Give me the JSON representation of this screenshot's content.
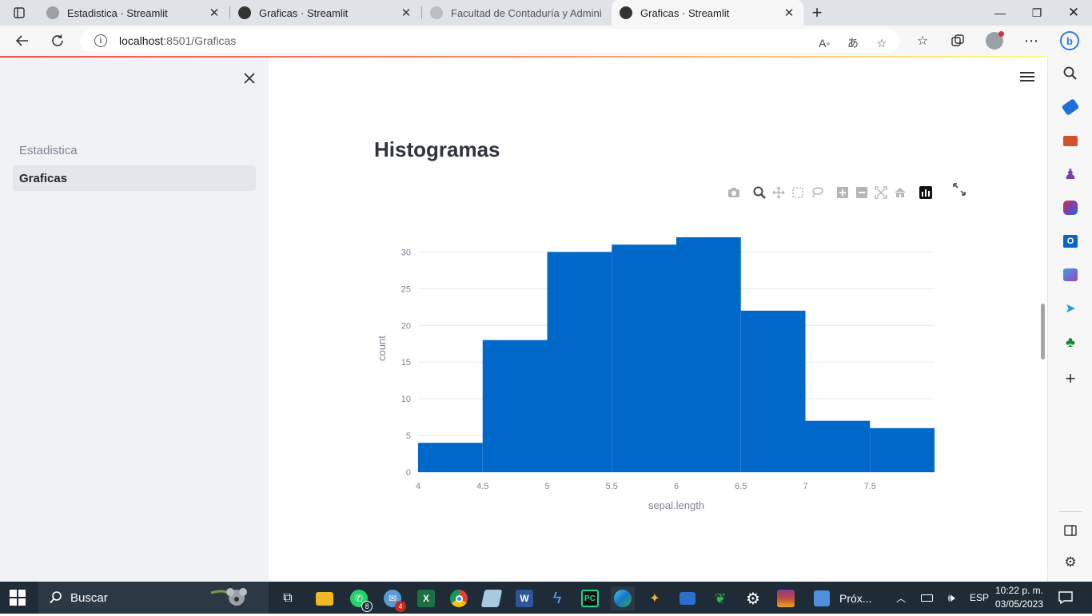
{
  "browser": {
    "tabs": [
      {
        "title": "Estadistica · Streamlit",
        "active": false
      },
      {
        "title": "Graficas · Streamlit",
        "active": false
      },
      {
        "title": "Facultad de Contaduría y Admini",
        "active": false
      },
      {
        "title": "Graficas · Streamlit",
        "active": true
      }
    ],
    "url_host": "localhost",
    "url_path": ":8501/Graficas"
  },
  "sidebar": {
    "items": [
      {
        "label": "Estadistica",
        "active": false
      },
      {
        "label": "Graficas",
        "active": true
      }
    ]
  },
  "main": {
    "title": "Histogramas"
  },
  "chart_data": {
    "type": "bar",
    "subtype": "histogram",
    "xlabel": "sepal.length",
    "ylabel": "count",
    "bins": [
      {
        "x0": 4.0,
        "x1": 4.5,
        "count": 4
      },
      {
        "x0": 4.5,
        "x1": 5.0,
        "count": 18
      },
      {
        "x0": 5.0,
        "x1": 5.5,
        "count": 30
      },
      {
        "x0": 5.5,
        "x1": 6.0,
        "count": 31
      },
      {
        "x0": 6.0,
        "x1": 6.5,
        "count": 32
      },
      {
        "x0": 6.5,
        "x1": 7.0,
        "count": 22
      },
      {
        "x0": 7.0,
        "x1": 7.5,
        "count": 7
      },
      {
        "x0": 7.5,
        "x1": 8.0,
        "count": 6
      }
    ],
    "xlim": [
      4,
      8
    ],
    "ylim": [
      0,
      32
    ],
    "xticks": [
      "4",
      "4.5",
      "5",
      "5.5",
      "6",
      "6.5",
      "7",
      "7.5"
    ],
    "yticks": [
      "0",
      "5",
      "10",
      "15",
      "20",
      "25",
      "30"
    ],
    "grid": true,
    "bar_color": "#0068c9"
  },
  "taskbar": {
    "search_placeholder": "Buscar",
    "whatsapp_badge": "8",
    "mail_badge": "4",
    "next_label": "Próx...",
    "language": "ESP",
    "time": "10:22 p. m.",
    "date": "03/05/2023"
  }
}
